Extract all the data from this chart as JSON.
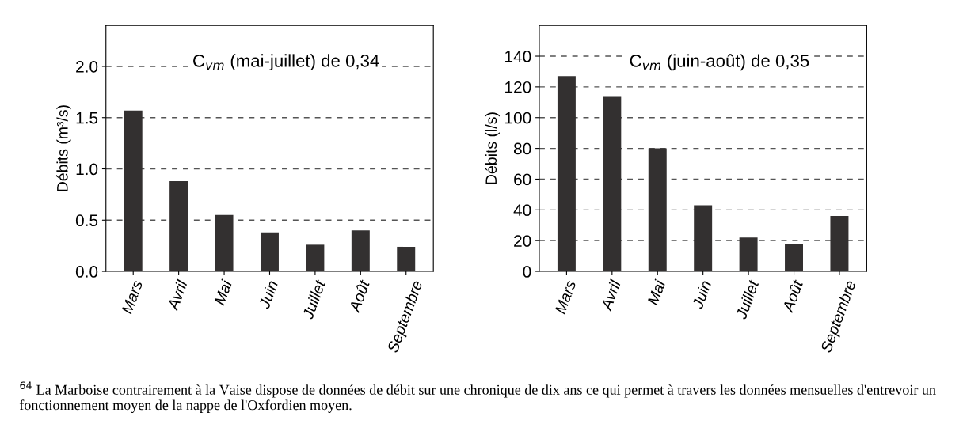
{
  "chart_data": [
    {
      "type": "bar",
      "ylabel": "Débits (m³/s)",
      "categories": [
        "Mars",
        "Avril",
        "Mai",
        "Juin",
        "Juillet",
        "Août",
        "Septembre"
      ],
      "values": [
        1.57,
        0.88,
        0.55,
        0.38,
        0.26,
        0.4,
        0.24
      ],
      "color": "#333030",
      "ylim": [
        0,
        2.4
      ],
      "yticks": [
        {
          "value": 0,
          "label": "0.0"
        },
        0.5,
        {
          "value": 1,
          "label": "1.0"
        },
        1.5,
        {
          "value": 2,
          "label": "2.0"
        }
      ],
      "grid": "y",
      "line_style": "dashed",
      "annotations": [
        "C$_{vm}$ (mai-juillet) de 0,34",
        "$^{64}$ La Marboise contrairement à la Vaise dispose de données de débit sur une chronique de dix ans ce qui permet à travers les données mensuelles d'entrevoir un fonctionnement moyen de la nappe de l'Oxfordien moyen."
      ]
    },
    {
      "type": "bar",
      "ylabel": "Débits (l/s)",
      "categories": [
        "Mars",
        "Avril",
        "Mai",
        "Juin",
        "Juillet",
        "Août",
        "Septembre"
      ],
      "values": [
        127,
        114,
        80,
        43,
        22,
        18,
        36
      ],
      "color": "#333030",
      "ylim": [
        0,
        160
      ],
      "yticks": [
        0,
        20,
        40,
        60,
        80,
        100,
        120,
        140
      ],
      "grid": "y",
      "line_style": "dashed",
      "annotations": [
        "C$_{vm}$ (juin-août) de 0,35"
      ]
    }
  ]
}
